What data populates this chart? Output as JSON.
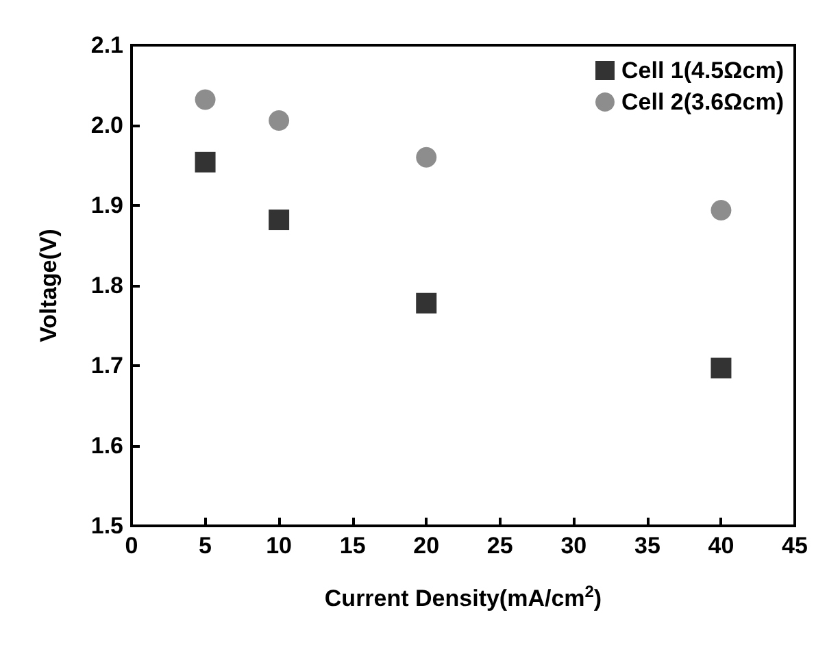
{
  "chart_data": {
    "type": "scatter",
    "xlabel": "Current Density(mA/cm$^{2}$)",
    "ylabel": "Voltage(V)",
    "x": [
      5,
      10,
      20,
      40
    ],
    "series": [
      {
        "name": "Cell 1(4.5Ωcm)",
        "color": "#000000",
        "marker": "square",
        "values": [
          1.954,
          1.882,
          1.778,
          1.697
        ]
      },
      {
        "name": "Cell 2(3.6Ωcm)",
        "color": "#707070",
        "marker": "circle",
        "values": [
          2.032,
          2.006,
          1.96,
          1.894
        ]
      }
    ],
    "xlim": [
      0,
      45
    ],
    "xticks": [
      0,
      5,
      10,
      15,
      20,
      25,
      30,
      35,
      40,
      45
    ],
    "ylim": [
      1.5,
      2.1
    ],
    "yticks": [
      1.5,
      1.6,
      1.7,
      1.8,
      1.9,
      {
        "value": 2,
        "label": "2.0"
      },
      2.1
    ],
    "grid": false,
    "legend": "top right"
  }
}
